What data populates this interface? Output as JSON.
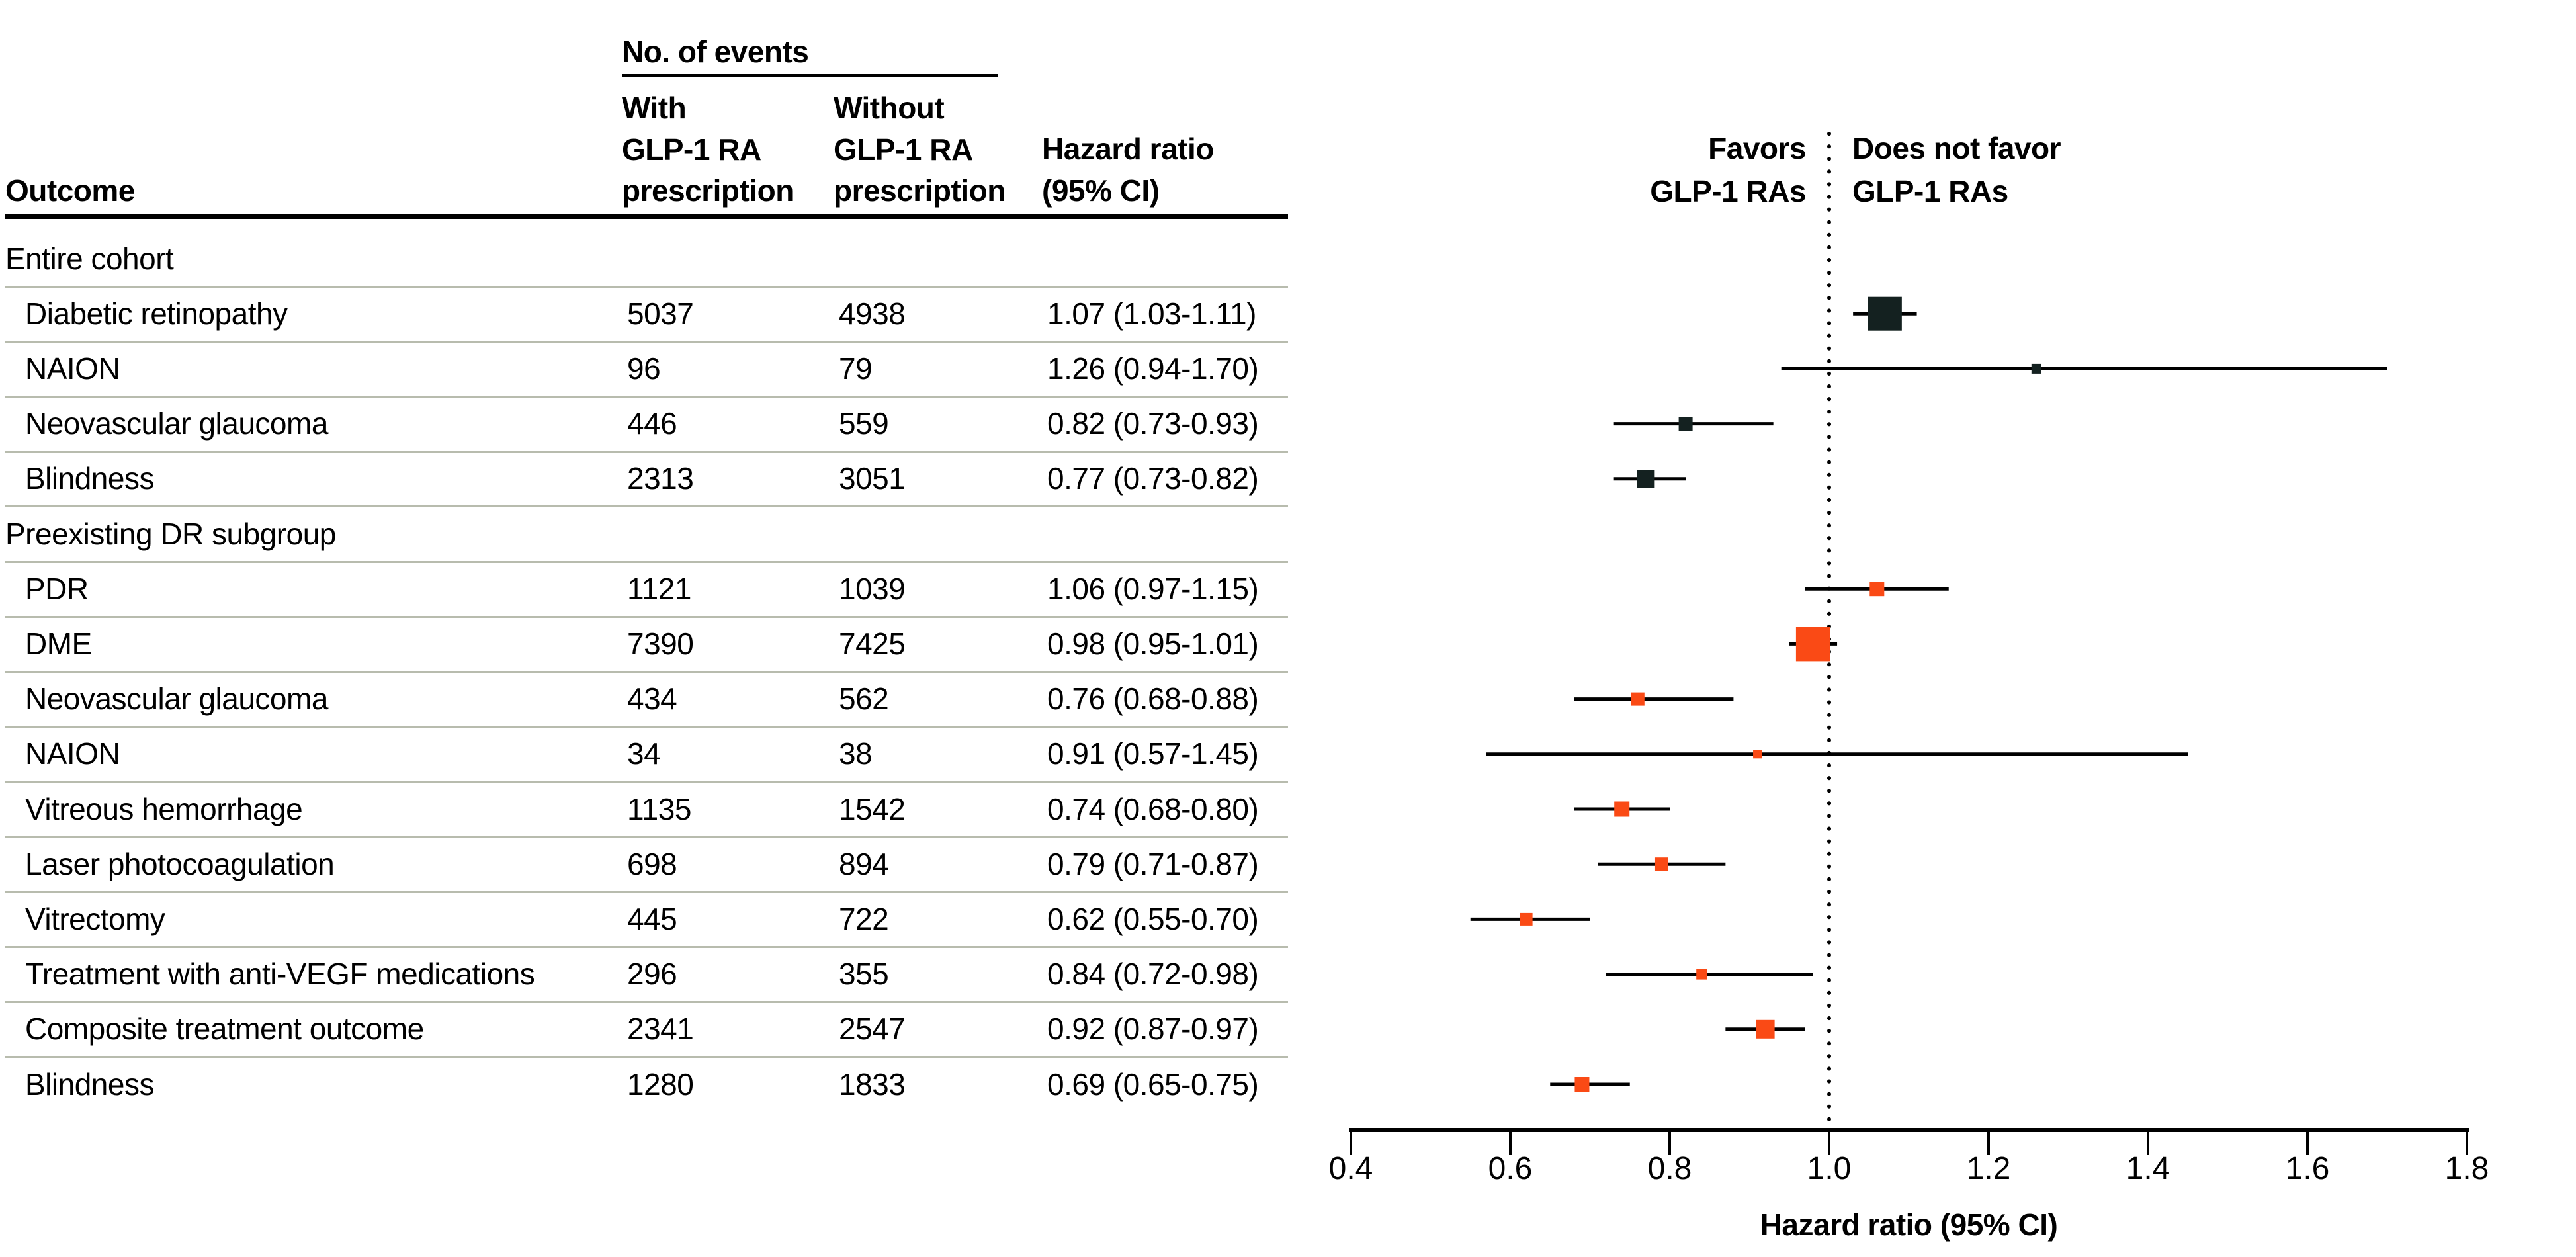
{
  "table": {
    "outcome_header": "Outcome",
    "events_group_header": "No. of events",
    "col_with_header": "With\nGLP-1 RA\nprescription",
    "col_without_header": "Without\nGLP-1 RA\nprescription",
    "col_hr_header": "Hazard ratio\n(95% CI)"
  },
  "plot": {
    "favors_label": "Favors\nGLP-1 RAs",
    "does_not_favor_label": "Does not favor\nGLP-1 RAs",
    "x_axis_title": "Hazard ratio (95% CI)",
    "ticks": [
      0.4,
      0.6,
      0.8,
      1.0,
      1.2,
      1.4,
      1.6,
      1.8
    ],
    "x_range": [
      0.4,
      1.8
    ],
    "reference_line": 1.0
  },
  "colors": {
    "entire_cohort_marker": "#142120",
    "subgroup_marker": "#fa4a15",
    "separator": "#b8bcae",
    "axis": "#000000",
    "text": "#000000"
  },
  "chart_data": {
    "type": "forest",
    "x_label": "Hazard ratio (95% CI)",
    "x_range": [
      0.4,
      1.8
    ],
    "reference_line": 1.0,
    "groups": [
      {
        "label": "Entire cohort",
        "marker_color": "#142120",
        "rows": [
          {
            "outcome": "Diabetic retinopathy",
            "events_with": "5037",
            "events_without": "4938",
            "hr_text": "1.07 (1.03-1.11)",
            "hr": 1.07,
            "ci_low": 1.03,
            "ci_high": 1.11,
            "marker_size": 51
          },
          {
            "outcome": "NAION",
            "events_with": "96",
            "events_without": "79",
            "hr_text": "1.26 (0.94-1.70)",
            "hr": 1.26,
            "ci_low": 0.94,
            "ci_high": 1.7,
            "marker_size": 15
          },
          {
            "outcome": "Neovascular glaucoma",
            "events_with": "446",
            "events_without": "559",
            "hr_text": "0.82 (0.73-0.93)",
            "hr": 0.82,
            "ci_low": 0.73,
            "ci_high": 0.93,
            "marker_size": 21
          },
          {
            "outcome": "Blindness",
            "events_with": "2313",
            "events_without": "3051",
            "hr_text": "0.77 (0.73-0.82)",
            "hr": 0.77,
            "ci_low": 0.73,
            "ci_high": 0.82,
            "marker_size": 27
          }
        ]
      },
      {
        "label": "Preexisting DR subgroup",
        "marker_color": "#fa4a15",
        "rows": [
          {
            "outcome": "PDR",
            "events_with": "1121",
            "events_without": "1039",
            "hr_text": "1.06 (0.97-1.15)",
            "hr": 1.06,
            "ci_low": 0.97,
            "ci_high": 1.15,
            "marker_size": 22
          },
          {
            "outcome": "DME",
            "events_with": "7390",
            "events_without": "7425",
            "hr_text": "0.98 (0.95-1.01)",
            "hr": 0.98,
            "ci_low": 0.95,
            "ci_high": 1.01,
            "marker_size": 52
          },
          {
            "outcome": "Neovascular glaucoma",
            "events_with": "434",
            "events_without": "562",
            "hr_text": "0.76 (0.68-0.88)",
            "hr": 0.76,
            "ci_low": 0.68,
            "ci_high": 0.88,
            "marker_size": 20
          },
          {
            "outcome": "NAION",
            "events_with": "34",
            "events_without": "38",
            "hr_text": "0.91 (0.57-1.45)",
            "hr": 0.91,
            "ci_low": 0.57,
            "ci_high": 1.45,
            "marker_size": 13
          },
          {
            "outcome": "Vitreous hemorrhage",
            "events_with": "1135",
            "events_without": "1542",
            "hr_text": "0.74 (0.68-0.80)",
            "hr": 0.74,
            "ci_low": 0.68,
            "ci_high": 0.8,
            "marker_size": 23
          },
          {
            "outcome": "Laser photocoagulation",
            "events_with": "698",
            "events_without": "894",
            "hr_text": "0.79 (0.71-0.87)",
            "hr": 0.79,
            "ci_low": 0.71,
            "ci_high": 0.87,
            "marker_size": 20
          },
          {
            "outcome": "Vitrectomy",
            "events_with": "445",
            "events_without": "722",
            "hr_text": "0.62 (0.55-0.70)",
            "hr": 0.62,
            "ci_low": 0.55,
            "ci_high": 0.7,
            "marker_size": 19
          },
          {
            "outcome": "Treatment with anti-VEGF medications",
            "events_with": "296",
            "events_without": "355",
            "hr_text": "0.84 (0.72-0.98)",
            "hr": 0.84,
            "ci_low": 0.72,
            "ci_high": 0.98,
            "marker_size": 16
          },
          {
            "outcome": "Composite treatment outcome",
            "events_with": "2341",
            "events_without": "2547",
            "hr_text": "0.92 (0.87-0.97)",
            "hr": 0.92,
            "ci_low": 0.87,
            "ci_high": 0.97,
            "marker_size": 28
          },
          {
            "outcome": "Blindness",
            "events_with": "1280",
            "events_without": "1833",
            "hr_text": "0.69 (0.65-0.75)",
            "hr": 0.69,
            "ci_low": 0.65,
            "ci_high": 0.75,
            "marker_size": 22
          }
        ]
      }
    ]
  }
}
